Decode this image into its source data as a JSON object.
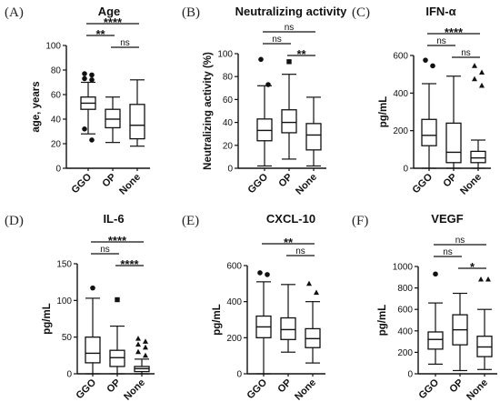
{
  "chart_data": [
    {
      "type": "box",
      "panel": "(A)",
      "title": "Age",
      "ylabel": "age, years",
      "ylim": [
        0,
        100
      ],
      "yticks": [
        0,
        20,
        40,
        60,
        80,
        100
      ],
      "categories": [
        "GGO",
        "OP",
        "None"
      ],
      "boxes": [
        {
          "min": 28,
          "q1": 48,
          "median": 53,
          "q3": 58,
          "max": 70,
          "outliers": [
            77,
            76,
            73,
            72,
            32,
            23
          ],
          "marker": "circle"
        },
        {
          "min": 21,
          "q1": 33,
          "median": 40,
          "q3": 48,
          "max": 58,
          "outliers": [],
          "marker": "square"
        },
        {
          "min": 18,
          "q1": 24,
          "median": 35,
          "q3": 52,
          "max": 72,
          "outliers": [],
          "marker": "triangle"
        }
      ],
      "comparisons": [
        {
          "from": 0,
          "to": 2,
          "label": "****"
        },
        {
          "from": 0,
          "to": 1,
          "label": "**"
        },
        {
          "from": 1,
          "to": 2,
          "label": "ns"
        }
      ]
    },
    {
      "type": "box",
      "panel": "(B)",
      "title": "Neutralizing activity",
      "ylabel": "Neutralizing activity (%)",
      "ylim": [
        0,
        100
      ],
      "yticks": [
        0,
        20,
        40,
        60,
        80,
        100
      ],
      "categories": [
        "GGO",
        "OP",
        "None"
      ],
      "boxes": [
        {
          "min": 2,
          "q1": 24,
          "median": 33,
          "q3": 43,
          "max": 72,
          "outliers": [
            95,
            73
          ],
          "marker": "circle"
        },
        {
          "min": 8,
          "q1": 31,
          "median": 40,
          "q3": 51,
          "max": 82,
          "outliers": [
            93
          ],
          "marker": "square"
        },
        {
          "min": 2,
          "q1": 16,
          "median": 29,
          "q3": 39,
          "max": 62,
          "outliers": [],
          "marker": "triangle"
        }
      ],
      "comparisons": [
        {
          "from": 0,
          "to": 2,
          "label": "ns"
        },
        {
          "from": 0,
          "to": 1,
          "label": "ns"
        },
        {
          "from": 1,
          "to": 2,
          "label": "**"
        }
      ]
    },
    {
      "type": "box",
      "panel": "(C)",
      "title": "IFN-α",
      "ylabel": "pg/mL",
      "ylim": [
        0,
        600
      ],
      "yticks": [
        0,
        200,
        400,
        600
      ],
      "categories": [
        "GGO",
        "OP",
        "None"
      ],
      "boxes": [
        {
          "min": 0,
          "q1": 120,
          "median": 175,
          "q3": 260,
          "max": 450,
          "outliers": [
            575,
            545
          ],
          "marker": "circle"
        },
        {
          "min": 0,
          "q1": 30,
          "median": 85,
          "q3": 240,
          "max": 490,
          "outliers": [],
          "marker": "square"
        },
        {
          "min": 0,
          "q1": 30,
          "median": 55,
          "q3": 90,
          "max": 150,
          "outliers": [
            545,
            510,
            475,
            440
          ],
          "marker": "triangle"
        }
      ],
      "comparisons": [
        {
          "from": 0,
          "to": 2,
          "label": "****"
        },
        {
          "from": 0,
          "to": 1,
          "label": "ns"
        },
        {
          "from": 1,
          "to": 2,
          "label": "ns"
        }
      ]
    },
    {
      "type": "box",
      "panel": "(D)",
      "title": "IL-6",
      "ylabel": "pg/mL",
      "ylim": [
        0,
        150
      ],
      "yticks": [
        0,
        50,
        100,
        150
      ],
      "categories": [
        "GGO",
        "OP",
        "None"
      ],
      "boxes": [
        {
          "min": 0,
          "q1": 15,
          "median": 28,
          "q3": 50,
          "max": 103,
          "outliers": [
            117
          ],
          "marker": "circle"
        },
        {
          "min": 0,
          "q1": 10,
          "median": 22,
          "q3": 32,
          "max": 65,
          "outliers": [
            101
          ],
          "marker": "square"
        },
        {
          "min": 0,
          "q1": 3,
          "median": 7,
          "q3": 10,
          "max": 20,
          "outliers": [
            48,
            44,
            40,
            36,
            30,
            25
          ],
          "marker": "triangle"
        }
      ],
      "comparisons": [
        {
          "from": 0,
          "to": 2,
          "label": "****"
        },
        {
          "from": 0,
          "to": 1,
          "label": "ns"
        },
        {
          "from": 1,
          "to": 2,
          "label": "****"
        }
      ]
    },
    {
      "type": "box",
      "panel": "(E)",
      "title": "CXCL-10",
      "ylabel": "pg/mL",
      "ylim": [
        0,
        600
      ],
      "yticks": [
        0,
        200,
        400,
        600
      ],
      "categories": [
        "GGO",
        "OP",
        "None"
      ],
      "boxes": [
        {
          "min": 0,
          "q1": 200,
          "median": 260,
          "q3": 320,
          "max": 510,
          "outliers": [
            560,
            550
          ],
          "marker": "circle"
        },
        {
          "min": 120,
          "q1": 190,
          "median": 245,
          "q3": 310,
          "max": 495,
          "outliers": [],
          "marker": "square"
        },
        {
          "min": 60,
          "q1": 145,
          "median": 195,
          "q3": 250,
          "max": 400,
          "outliers": [
            500,
            450
          ],
          "marker": "triangle"
        }
      ],
      "comparisons": [
        {
          "from": 0,
          "to": 2,
          "label": "**"
        },
        {
          "from": 1,
          "to": 2,
          "label": "ns"
        }
      ]
    },
    {
      "type": "box",
      "panel": "(F)",
      "title": "VEGF",
      "ylabel": "pg/mL",
      "ylim": [
        0,
        1000
      ],
      "yticks": [
        0,
        200,
        400,
        600,
        800,
        1000
      ],
      "categories": [
        "GGO",
        "OP",
        "None"
      ],
      "boxes": [
        {
          "min": 90,
          "q1": 230,
          "median": 320,
          "q3": 390,
          "max": 660,
          "outliers": [
            930
          ],
          "marker": "circle"
        },
        {
          "min": 30,
          "q1": 270,
          "median": 410,
          "q3": 550,
          "max": 750,
          "outliers": [],
          "marker": "square"
        },
        {
          "min": 40,
          "q1": 160,
          "median": 250,
          "q3": 350,
          "max": 600,
          "outliers": [
            880,
            880
          ],
          "marker": "triangle"
        }
      ],
      "comparisons": [
        {
          "from": 0,
          "to": 2,
          "label": "ns"
        },
        {
          "from": 0,
          "to": 1,
          "label": "ns"
        },
        {
          "from": 1,
          "to": 2,
          "label": "*"
        }
      ]
    }
  ]
}
